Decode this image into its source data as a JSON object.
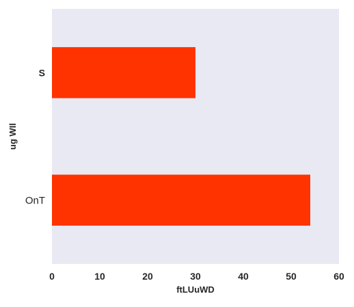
{
  "chart_data": {
    "type": "bar",
    "orientation": "horizontal",
    "categories": [
      "S",
      "OnT"
    ],
    "values": [
      30,
      54
    ],
    "xlabel": "ftLUuWD",
    "ylabel": "ug WIl",
    "xlim": [
      0,
      60
    ],
    "xticks": [
      0,
      10,
      20,
      30,
      40,
      50,
      60
    ],
    "grid": false,
    "legend": "none",
    "colors": {
      "bar": "#ff3300",
      "plot_background": "#e9e9f3",
      "text": "#262626"
    }
  }
}
